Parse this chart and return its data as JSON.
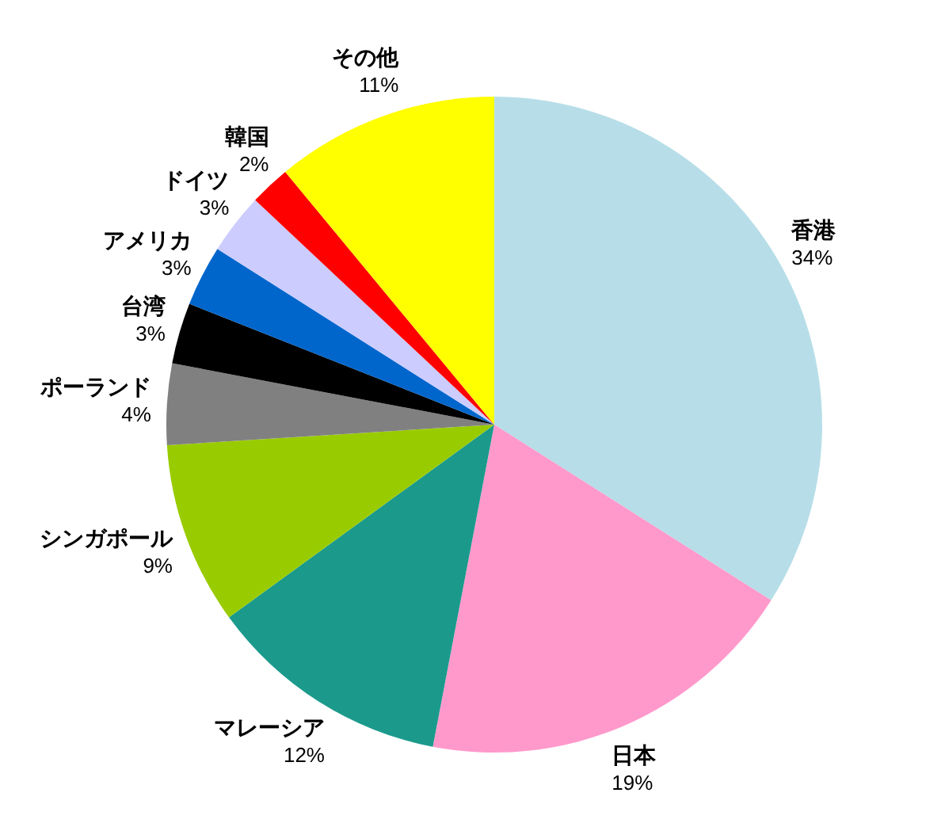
{
  "chart_data": {
    "type": "pie",
    "categories": [
      "香港",
      "日本",
      "マレーシア",
      "シンガポール",
      "ポーランド",
      "台湾",
      "アメリカ",
      "ドイツ",
      "韓国",
      "その他"
    ],
    "values": [
      34,
      19,
      12,
      9,
      4,
      3,
      3,
      3,
      2,
      11
    ],
    "value_labels": [
      "34%",
      "19%",
      "12%",
      "9%",
      "4%",
      "3%",
      "3%",
      "3%",
      "2%",
      "11%"
    ],
    "colors": [
      "#b7dee8",
      "#ff99cc",
      "#1b9a8c",
      "#99cc00",
      "#808080",
      "#000000",
      "#0066cc",
      "#ccccff",
      "#ff0000",
      "#ffff00"
    ]
  }
}
